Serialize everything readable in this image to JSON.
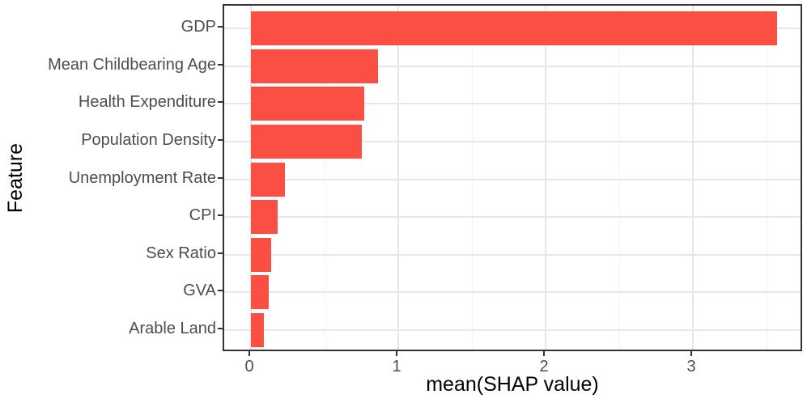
{
  "chart_data": {
    "type": "bar",
    "orientation": "horizontal",
    "title": "",
    "xlabel": "mean(SHAP value)",
    "ylabel": "Feature",
    "categories": [
      "GDP",
      "Mean Childbearing Age",
      "Health Expenditure",
      "Population Density",
      "Unemployment Rate",
      "CPI",
      "Sex Ratio",
      "GVA",
      "Arable Land"
    ],
    "values": [
      3.57,
      0.86,
      0.77,
      0.75,
      0.23,
      0.18,
      0.14,
      0.12,
      0.09
    ],
    "x_ticks": [
      "0",
      "1",
      "2",
      "3"
    ],
    "x_tick_values": [
      0,
      1,
      2,
      3
    ],
    "x_minor_tick_values": [
      0.5,
      1.5,
      2.5,
      3.5
    ],
    "xlim": [
      -0.19,
      3.75
    ],
    "grid": true,
    "legend": false,
    "colors": {
      "bar_fill": "#fb4f43",
      "panel_border": "#333333",
      "grid_major": "#e7e7e7",
      "grid_minor": "#f3f3f3",
      "tick_label": "#4d4d4d",
      "axis_title": "#000000",
      "background": "#ffffff"
    }
  }
}
